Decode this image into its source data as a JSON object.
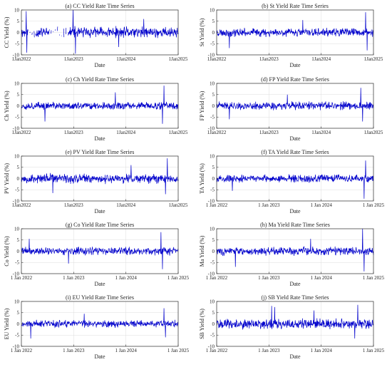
{
  "figure": {
    "background": "#ffffff",
    "line_color": "#0000cc"
  },
  "chart_data": [
    {
      "type": "line",
      "title": "(a) CC Yield Rate Time Series",
      "xlabel": "Date",
      "ylabel": "CC Yield (%)",
      "xlim": [
        "2022-01-01",
        "2025-01-01"
      ],
      "ylim": [
        -10,
        10
      ],
      "yticks": [
        -10,
        -5,
        0,
        5,
        10
      ],
      "xtick_labels": [
        "1Jan2022",
        "1Jan2023",
        "1Jan2024",
        "1Jan2025"
      ],
      "series": [
        {
          "seed": 11,
          "amplitude": 3.0,
          "spikes": [
            [
              0.03,
              9.5
            ],
            [
              0.035,
              -9.0
            ],
            [
              0.33,
              10.0
            ],
            [
              0.345,
              -9.5
            ],
            [
              0.5,
              8.0
            ],
            [
              0.62,
              -6.5
            ],
            [
              0.78,
              6.0
            ]
          ],
          "gaps": [
            [
              0.04,
              0.09
            ],
            [
              0.18,
              0.3
            ]
          ]
        }
      ],
      "grid": true
    },
    {
      "type": "line",
      "title": "(b) St Yield Rate Time Series",
      "xlabel": "Date",
      "ylabel": "St Yield (%)",
      "xlim": [
        "2022-01-01",
        "2025-01-01"
      ],
      "ylim": [
        -10,
        10
      ],
      "yticks": [
        -10,
        -5,
        0,
        5,
        10
      ],
      "xtick_labels": [
        "1Jan2022",
        "1Jan2023",
        "1Jan2024",
        "1Jan2025"
      ],
      "series": [
        {
          "seed": 23,
          "amplitude": 2.2,
          "spikes": [
            [
              0.08,
              -7.0
            ],
            [
              0.95,
              9.0
            ],
            [
              0.96,
              -8.0
            ],
            [
              0.55,
              5.5
            ]
          ],
          "gaps": []
        }
      ],
      "grid": true
    },
    {
      "type": "line",
      "title": "(c) Ch Yield Rate Time Series",
      "xlabel": "Date",
      "ylabel": "Ch Yield (%)",
      "xlim": [
        "2022-01-01",
        "2025-01-01"
      ],
      "ylim": [
        -10,
        10
      ],
      "yticks": [
        -10,
        -5,
        0,
        5,
        10
      ],
      "xtick_labels": [
        "1Jan2022",
        "1Jan2023",
        "1Jan2024",
        "1Jan2025"
      ],
      "series": [
        {
          "seed": 37,
          "amplitude": 2.0,
          "spikes": [
            [
              0.91,
              9.0
            ],
            [
              0.9,
              -8.0
            ],
            [
              0.15,
              -7.0
            ],
            [
              0.6,
              6.0
            ]
          ],
          "gaps": []
        }
      ],
      "grid": true
    },
    {
      "type": "line",
      "title": "(d) FP Yield Rate Time Series",
      "xlabel": "Date",
      "ylabel": "FP Yield (%)",
      "xlim": [
        "2022-01-01",
        "2025-01-01"
      ],
      "ylim": [
        -10,
        10
      ],
      "yticks": [
        -10,
        -5,
        0,
        5,
        10
      ],
      "xtick_labels": [
        "1Jan2022",
        "1Jan2023",
        "1Jan2024",
        "1Jan2025"
      ],
      "series": [
        {
          "seed": 41,
          "amplitude": 2.1,
          "spikes": [
            [
              0.92,
              8.0
            ],
            [
              0.93,
              -7.0
            ],
            [
              0.08,
              -6.0
            ],
            [
              0.45,
              5.0
            ]
          ],
          "gaps": []
        }
      ],
      "grid": true
    },
    {
      "type": "line",
      "title": "(e) PV Yield Rate Time Series",
      "xlabel": "Date",
      "ylabel": "PV Yield (%)",
      "xlim": [
        "2022-01-01",
        "2025-01-01"
      ],
      "ylim": [
        -10,
        10
      ],
      "yticks": [
        -10,
        -5,
        0,
        5,
        10
      ],
      "xtick_labels": [
        "1Jan2022",
        "1Jan2023",
        "1Jan2024",
        "1Jan2025"
      ],
      "series": [
        {
          "seed": 53,
          "amplitude": 2.6,
          "spikes": [
            [
              0.93,
              9.0
            ],
            [
              0.92,
              -7.0
            ],
            [
              0.2,
              -6.5
            ],
            [
              0.7,
              6.0
            ]
          ],
          "gaps": []
        }
      ],
      "grid": true
    },
    {
      "type": "line",
      "title": "(f) TA Yield Rate Time Series",
      "xlabel": "Date",
      "ylabel": "TA Yield (%)",
      "xlim": [
        "2022-01-01",
        "2025-01-01"
      ],
      "ylim": [
        -10,
        10
      ],
      "yticks": [
        -10,
        -5,
        0,
        5,
        10
      ],
      "xtick_labels": [
        "1 Jan 2022",
        "1 Jan 2023",
        "1 Jan 2024",
        "1 Jan 2025"
      ],
      "series": [
        {
          "seed": 67,
          "amplitude": 2.0,
          "spikes": [
            [
              0.95,
              8.0
            ],
            [
              0.94,
              -9.0
            ],
            [
              0.1,
              -5.5
            ],
            [
              0.5,
              5.0
            ]
          ],
          "gaps": []
        }
      ],
      "grid": true
    },
    {
      "type": "line",
      "title": "(g) Co Yield Rate Time Series",
      "xlabel": "Date",
      "ylabel": "Co Yield (%)",
      "xlim": [
        "2022-01-01",
        "2025-01-01"
      ],
      "ylim": [
        -10,
        10
      ],
      "yticks": [
        -10,
        -5,
        0,
        5,
        10
      ],
      "xtick_labels": [
        "1 Jan 2022",
        "1 Jan 2023",
        "1 Jan 2024",
        "1 Jan 2025"
      ],
      "series": [
        {
          "seed": 71,
          "amplitude": 2.2,
          "spikes": [
            [
              0.89,
              8.5
            ],
            [
              0.9,
              -8.0
            ],
            [
              0.05,
              5.5
            ],
            [
              0.3,
              -5.5
            ]
          ],
          "gaps": []
        }
      ],
      "grid": true
    },
    {
      "type": "line",
      "title": "(h) Ma Yield Rate Time Series",
      "xlabel": "Date",
      "ylabel": "Ma Yield (%)",
      "xlim": [
        "2022-01-01",
        "2025-01-01"
      ],
      "ylim": [
        -10,
        10
      ],
      "yticks": [
        -10,
        -5,
        0,
        5,
        10
      ],
      "xtick_labels": [
        "1 Jan 2022",
        "1 Jan 2023",
        "1 Jan 2024",
        "1 Jan 2025"
      ],
      "series": [
        {
          "seed": 83,
          "amplitude": 2.3,
          "spikes": [
            [
              0.93,
              10.0
            ],
            [
              0.94,
              -9.0
            ],
            [
              0.12,
              -7.0
            ],
            [
              0.6,
              5.5
            ]
          ],
          "gaps": []
        }
      ],
      "grid": true
    },
    {
      "type": "line",
      "title": "(i) EU Yield Rate Time Series",
      "xlabel": "Date",
      "ylabel": "EU Yield (%)",
      "xlim": [
        "2022-01-01",
        "2025-01-01"
      ],
      "ylim": [
        -10,
        10
      ],
      "yticks": [
        -10,
        -5,
        0,
        5,
        10
      ],
      "xtick_labels": [
        "1 Jan 2022",
        "1 Jan 2023",
        "1 Jan 2024",
        "1 Jan 2025"
      ],
      "series": [
        {
          "seed": 97,
          "amplitude": 1.9,
          "spikes": [
            [
              0.91,
              7.0
            ],
            [
              0.92,
              -6.0
            ],
            [
              0.06,
              -6.5
            ],
            [
              0.4,
              4.5
            ]
          ],
          "gaps": []
        }
      ],
      "grid": true
    },
    {
      "type": "line",
      "title": "(j) SB Yield Rate Time Series",
      "xlabel": "Date",
      "ylabel": "SB Yield (%)",
      "xlim": [
        "2022-01-01",
        "2025-01-01"
      ],
      "ylim": [
        -10,
        10
      ],
      "yticks": [
        -10,
        -5,
        0,
        5,
        10
      ],
      "xtick_labels": [
        "1 Jan 2022",
        "1 Jan 2023",
        "1 Jan 2024",
        "1 Jan 2025"
      ],
      "series": [
        {
          "seed": 101,
          "amplitude": 2.8,
          "spikes": [
            [
              0.35,
              8.0
            ],
            [
              0.37,
              7.5
            ],
            [
              0.9,
              8.5
            ],
            [
              0.88,
              -6.5
            ],
            [
              0.62,
              6.0
            ]
          ],
          "gaps": []
        }
      ],
      "grid": true
    }
  ]
}
